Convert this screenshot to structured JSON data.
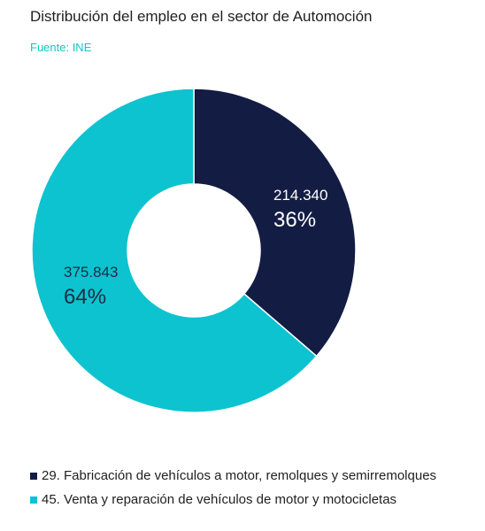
{
  "chart_data": {
    "type": "pie",
    "title": "Distribución del empleo en el sector de Automoción",
    "subtitle": "Fuente: INE",
    "donut": true,
    "slices": [
      {
        "label": "29. Fabricación de vehículos a motor, remolques y semirremolques",
        "value": 214340,
        "value_label": "214.340",
        "percent_label": "36%",
        "color": "#131c43",
        "label_color": "#ffffff"
      },
      {
        "label": "45. Venta y reparación de vehículos de motor y motocicletas",
        "value": 375843,
        "value_label": "375.843",
        "percent_label": "64%",
        "color": "#0dc3cf",
        "label_color": "#1f2a44"
      }
    ],
    "legend_position": "bottom-left"
  }
}
